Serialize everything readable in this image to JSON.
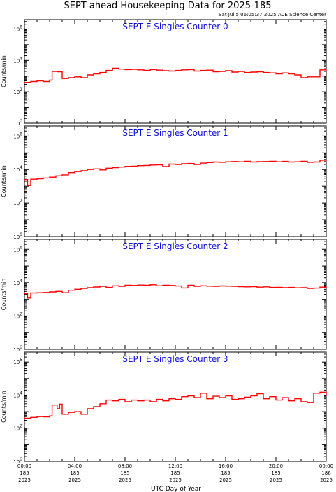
{
  "header": {
    "title": "SEPT ahead Housekeeping Data for 2025-185",
    "timestamp": "Sat Jul  5 06:05:37 2025 ACE Science Center"
  },
  "colors": {
    "series": "#ff0000",
    "panel_title": "#1010d8",
    "axes": "#000000"
  },
  "chart_data": [
    {
      "type": "line",
      "title": "SEPT E Singles Counter 0",
      "ylabel": "Counts/min",
      "y_scale": "log",
      "ylim": [
        1,
        1000000
      ],
      "y_ticks": [
        "10^0",
        "10^2",
        "10^4",
        "10^6"
      ],
      "xlim": [
        0,
        24
      ],
      "grid": false,
      "series": [
        {
          "x": [
            0,
            0.5,
            1,
            1.5,
            2,
            2.2,
            2.6,
            3,
            3.5,
            4,
            4.5,
            5,
            5.5,
            6,
            6.5,
            7,
            7.5,
            8,
            8.5,
            9,
            9.5,
            10,
            10.5,
            11,
            11.5,
            12,
            12.5,
            13,
            13.5,
            14,
            14.5,
            15,
            15.5,
            16,
            16.5,
            17,
            17.5,
            18,
            18.5,
            19,
            19.5,
            20,
            20.5,
            21,
            21.5,
            22,
            22.5,
            23,
            23.5,
            24
          ],
          "y": [
            400,
            450,
            500,
            450,
            550,
            2000,
            1900,
            700,
            800,
            900,
            800,
            1200,
            1400,
            1700,
            2300,
            3200,
            2800,
            2600,
            2700,
            2500,
            2300,
            2600,
            2400,
            2200,
            2100,
            2300,
            2500,
            2600,
            2100,
            2300,
            2400,
            1900,
            2000,
            2200,
            1800,
            2000,
            1700,
            1800,
            1900,
            1700,
            1600,
            1400,
            1600,
            1400,
            1200,
            800,
            900,
            900,
            2500,
            2000
          ]
        }
      ]
    },
    {
      "type": "line",
      "title": "SEPT E Singles Counter 1",
      "ylabel": "Counts/min",
      "y_scale": "log",
      "ylim": [
        1,
        1000000
      ],
      "y_ticks": [
        "10^0",
        "10^2",
        "10^4",
        "10^6"
      ],
      "xlim": [
        0,
        24
      ],
      "grid": false,
      "series": [
        {
          "x": [
            0,
            0.25,
            0.5,
            1,
            1.5,
            2,
            2.5,
            3,
            3.5,
            4,
            4.5,
            5,
            5.5,
            6,
            6.5,
            7,
            7.5,
            8,
            8.5,
            9,
            9.5,
            10,
            10.5,
            11,
            11.5,
            12,
            12.5,
            13,
            13.5,
            14,
            14.5,
            15,
            15.5,
            16,
            16.5,
            17,
            17.5,
            18,
            18.5,
            19,
            19.5,
            20,
            20.5,
            21,
            21.5,
            22,
            22.5,
            23,
            23.5,
            24
          ],
          "y": [
            2500,
            1100,
            2600,
            2800,
            3100,
            3500,
            4200,
            4800,
            6500,
            7500,
            8500,
            10000,
            11000,
            9500,
            12000,
            13000,
            14000,
            15500,
            16000,
            17000,
            17500,
            18500,
            19000,
            15000,
            21000,
            20000,
            22000,
            23000,
            20000,
            24000,
            26000,
            28000,
            27000,
            29000,
            30000,
            29000,
            31000,
            28000,
            29500,
            30000,
            31000,
            29000,
            30500,
            28000,
            29000,
            31000,
            27000,
            28000,
            36000,
            33000
          ]
        }
      ]
    },
    {
      "type": "line",
      "title": "SEPT E Singles Counter 2",
      "ylabel": "Counts/min",
      "y_scale": "log",
      "ylim": [
        1,
        1000000
      ],
      "y_ticks": [
        "10^0",
        "10^2",
        "10^4",
        "10^6"
      ],
      "xlim": [
        0,
        24
      ],
      "grid": false,
      "series": [
        {
          "x": [
            0,
            0.25,
            0.5,
            1,
            1.5,
            2,
            2.5,
            3,
            3.5,
            4,
            4.5,
            5,
            5.5,
            6,
            6.5,
            7,
            7.5,
            8,
            8.5,
            9,
            9.5,
            10,
            10.5,
            11,
            11.5,
            12,
            12.5,
            13,
            13.5,
            14,
            14.5,
            15,
            15.5,
            16,
            16.5,
            17,
            17.5,
            18,
            18.5,
            19,
            19.5,
            20,
            20.5,
            21,
            21.5,
            22,
            22.5,
            23,
            23.5,
            24
          ],
          "y": [
            2200,
            1200,
            2400,
            2500,
            2600,
            2800,
            3000,
            2500,
            3500,
            4000,
            4500,
            5000,
            5500,
            6000,
            5200,
            6500,
            6000,
            7000,
            6800,
            7200,
            7000,
            7500,
            6500,
            7000,
            6800,
            6300,
            4800,
            7000,
            6000,
            6500,
            6200,
            6000,
            6400,
            6200,
            6000,
            5800,
            5600,
            5800,
            5400,
            5600,
            5200,
            5300,
            5000,
            5200,
            4900,
            5000,
            4500,
            4700,
            5400,
            4800
          ]
        }
      ]
    },
    {
      "type": "line",
      "title": "SEPT E Singles Counter 3",
      "ylabel": "Counts/min",
      "y_scale": "log",
      "ylim": [
        1,
        1000000
      ],
      "y_ticks": [
        "10^0",
        "10^2",
        "10^4",
        "10^6"
      ],
      "xlim": [
        0,
        24
      ],
      "grid": false,
      "series": [
        {
          "x": [
            0,
            0.5,
            1,
            1.5,
            2,
            2.2,
            2.6,
            2.8,
            3,
            3.5,
            4,
            4.5,
            5,
            5.5,
            6,
            6.5,
            7,
            7.5,
            8,
            8.5,
            9,
            9.5,
            10,
            10.5,
            11,
            11.5,
            12,
            12.5,
            13,
            13.5,
            14,
            14.5,
            15,
            15.5,
            16,
            16.5,
            17,
            17.5,
            18,
            18.5,
            19,
            19.5,
            20,
            20.5,
            21,
            21.5,
            22,
            22.5,
            23,
            23.5,
            24
          ],
          "y": [
            400,
            450,
            500,
            480,
            550,
            2500,
            1500,
            2800,
            700,
            900,
            1000,
            700,
            1500,
            2000,
            3000,
            5000,
            4500,
            5500,
            4000,
            5000,
            4500,
            5000,
            4000,
            5500,
            4500,
            6000,
            5500,
            8000,
            9000,
            7000,
            13000,
            6000,
            8500,
            7000,
            9000,
            5500,
            6000,
            7500,
            9000,
            12000,
            6000,
            8000,
            5000,
            7000,
            4500,
            6000,
            4000,
            3500,
            13000,
            15000,
            9000
          ]
        }
      ]
    }
  ],
  "xaxis": {
    "label": "UTC Day of Year",
    "ticks": [
      {
        "time": "00:00",
        "doy": "185",
        "year": "2025",
        "value": 0
      },
      {
        "time": "04:00",
        "doy": "185",
        "year": "2025",
        "value": 4
      },
      {
        "time": "08:00",
        "doy": "185",
        "year": "2025",
        "value": 8
      },
      {
        "time": "12:00",
        "doy": "185",
        "year": "2025",
        "value": 12
      },
      {
        "time": "16:00",
        "doy": "185",
        "year": "2025",
        "value": 16
      },
      {
        "time": "20:00",
        "doy": "185",
        "year": "2025",
        "value": 20
      },
      {
        "time": "00:00",
        "doy": "186",
        "year": "2025",
        "value": 24
      }
    ]
  }
}
